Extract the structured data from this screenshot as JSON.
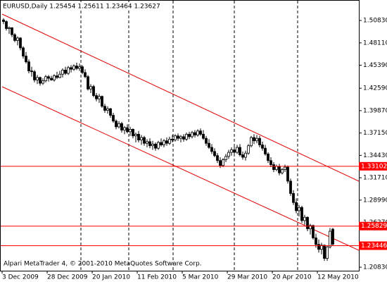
{
  "chart_data": {
    "type": "candlestick",
    "header": "EURUSD,Daily  1.25454 1.25611 1.23464 1.23627",
    "footer": "Alpari MetaTrader 4, © 2001-2010 MetaQuotes Software Corp.",
    "x_labels": [
      "3 Dec 2009",
      "28 Dec 2009",
      "20 Jan 2010",
      "11 Feb 2010",
      "5 Mar 2010",
      "29 Mar 2010",
      "20 Apr 2010",
      "12 May 2010"
    ],
    "ylim": [
      1.2049,
      1.5332
    ],
    "yticks": [
      {
        "value": 1.5083,
        "label": "1.50830"
      },
      {
        "value": 1.4811,
        "label": "1.48110"
      },
      {
        "value": 1.4539,
        "label": "1.45390"
      },
      {
        "value": 1.4259,
        "label": "1.42590"
      },
      {
        "value": 1.3987,
        "label": "1.39870"
      },
      {
        "value": 1.3715,
        "label": "1.37150"
      },
      {
        "value": 1.3443,
        "label": "1.34430"
      },
      {
        "value": 1.3171,
        "label": "1.31710"
      },
      {
        "value": 1.2899,
        "label": "1.28990"
      },
      {
        "value": 1.2627,
        "label": "1.26270"
      },
      {
        "value": 1.2083,
        "label": "1.20830"
      }
    ],
    "levels": [
      1.33102,
      1.25829,
      1.23446
    ],
    "level_color": "#ff0000",
    "ohlc": [
      [
        1.509,
        1.511,
        1.504,
        1.507
      ],
      [
        1.507,
        1.5085,
        1.496,
        1.4985
      ],
      [
        1.4985,
        1.501,
        1.492,
        1.4995
      ],
      [
        1.4995,
        1.5,
        1.488,
        1.491
      ],
      [
        1.491,
        1.493,
        1.482,
        1.484
      ],
      [
        1.484,
        1.489,
        1.478,
        1.487
      ],
      [
        1.487,
        1.488,
        1.472,
        1.475
      ],
      [
        1.475,
        1.477,
        1.462,
        1.465
      ],
      [
        1.465,
        1.47,
        1.456,
        1.458
      ],
      [
        1.458,
        1.461,
        1.444,
        1.447
      ],
      [
        1.447,
        1.452,
        1.44,
        1.446
      ],
      [
        1.446,
        1.448,
        1.433,
        1.436
      ],
      [
        1.436,
        1.442,
        1.431,
        1.439
      ],
      [
        1.439,
        1.44,
        1.429,
        1.432
      ],
      [
        1.432,
        1.438,
        1.43,
        1.435
      ],
      [
        1.435,
        1.442,
        1.433,
        1.44
      ],
      [
        1.44,
        1.442,
        1.434,
        1.438
      ],
      [
        1.438,
        1.441,
        1.435,
        1.436
      ],
      [
        1.436,
        1.443,
        1.434,
        1.441
      ],
      [
        1.441,
        1.446,
        1.437,
        1.439
      ],
      [
        1.439,
        1.447,
        1.438,
        1.443
      ],
      [
        1.443,
        1.45,
        1.439,
        1.448
      ],
      [
        1.448,
        1.452,
        1.442,
        1.444
      ],
      [
        1.444,
        1.453,
        1.442,
        1.451
      ],
      [
        1.451,
        1.454,
        1.445,
        1.449
      ],
      [
        1.449,
        1.455,
        1.447,
        1.453
      ],
      [
        1.453,
        1.457,
        1.448,
        1.45
      ],
      [
        1.45,
        1.456,
        1.447,
        1.452
      ],
      [
        1.452,
        1.454,
        1.443,
        1.445
      ],
      [
        1.445,
        1.449,
        1.438,
        1.44
      ],
      [
        1.44,
        1.442,
        1.423,
        1.425
      ],
      [
        1.425,
        1.431,
        1.42,
        1.428
      ],
      [
        1.428,
        1.43,
        1.415,
        1.417
      ],
      [
        1.417,
        1.42,
        1.41,
        1.413
      ],
      [
        1.413,
        1.419,
        1.408,
        1.416
      ],
      [
        1.416,
        1.417,
        1.402,
        1.404
      ],
      [
        1.404,
        1.407,
        1.396,
        1.399
      ],
      [
        1.399,
        1.404,
        1.395,
        1.401
      ],
      [
        1.401,
        1.402,
        1.39,
        1.393
      ],
      [
        1.393,
        1.396,
        1.384,
        1.386
      ],
      [
        1.386,
        1.388,
        1.376,
        1.379
      ],
      [
        1.379,
        1.386,
        1.377,
        1.383
      ],
      [
        1.383,
        1.385,
        1.372,
        1.375
      ],
      [
        1.375,
        1.38,
        1.37,
        1.378
      ],
      [
        1.378,
        1.382,
        1.371,
        1.373
      ],
      [
        1.373,
        1.379,
        1.368,
        1.376
      ],
      [
        1.376,
        1.377,
        1.365,
        1.368
      ],
      [
        1.368,
        1.372,
        1.36,
        1.37
      ],
      [
        1.37,
        1.374,
        1.36,
        1.363
      ],
      [
        1.363,
        1.369,
        1.357,
        1.366
      ],
      [
        1.366,
        1.368,
        1.356,
        1.359
      ],
      [
        1.359,
        1.364,
        1.354,
        1.361
      ],
      [
        1.361,
        1.365,
        1.353,
        1.356
      ],
      [
        1.356,
        1.362,
        1.351,
        1.358
      ],
      [
        1.358,
        1.36,
        1.35,
        1.353
      ],
      [
        1.353,
        1.362,
        1.351,
        1.36
      ],
      [
        1.36,
        1.365,
        1.355,
        1.357
      ],
      [
        1.357,
        1.364,
        1.354,
        1.362
      ],
      [
        1.362,
        1.366,
        1.356,
        1.359
      ],
      [
        1.359,
        1.367,
        1.357,
        1.364
      ],
      [
        1.364,
        1.369,
        1.36,
        1.363
      ],
      [
        1.363,
        1.37,
        1.361,
        1.368
      ],
      [
        1.368,
        1.371,
        1.362,
        1.365
      ],
      [
        1.365,
        1.369,
        1.36,
        1.367
      ],
      [
        1.367,
        1.37,
        1.361,
        1.364
      ],
      [
        1.364,
        1.372,
        1.362,
        1.37
      ],
      [
        1.37,
        1.373,
        1.364,
        1.367
      ],
      [
        1.367,
        1.374,
        1.365,
        1.372
      ],
      [
        1.372,
        1.375,
        1.366,
        1.369
      ],
      [
        1.369,
        1.376,
        1.367,
        1.374
      ],
      [
        1.374,
        1.377,
        1.368,
        1.37
      ],
      [
        1.37,
        1.375,
        1.363,
        1.365
      ],
      [
        1.365,
        1.368,
        1.356,
        1.359
      ],
      [
        1.359,
        1.364,
        1.352,
        1.354
      ],
      [
        1.354,
        1.358,
        1.346,
        1.349
      ],
      [
        1.349,
        1.353,
        1.342,
        1.344
      ],
      [
        1.344,
        1.347,
        1.335,
        1.338
      ],
      [
        1.338,
        1.342,
        1.329,
        1.332
      ],
      [
        1.332,
        1.341,
        1.33,
        1.339
      ],
      [
        1.339,
        1.346,
        1.336,
        1.343
      ],
      [
        1.343,
        1.351,
        1.34,
        1.348
      ],
      [
        1.348,
        1.354,
        1.344,
        1.351
      ],
      [
        1.351,
        1.356,
        1.345,
        1.348
      ],
      [
        1.348,
        1.357,
        1.346,
        1.354
      ],
      [
        1.354,
        1.358,
        1.343,
        1.345
      ],
      [
        1.345,
        1.349,
        1.339,
        1.342
      ],
      [
        1.342,
        1.35,
        1.338,
        1.347
      ],
      [
        1.347,
        1.358,
        1.345,
        1.356
      ],
      [
        1.356,
        1.368,
        1.354,
        1.366
      ],
      [
        1.366,
        1.37,
        1.358,
        1.362
      ],
      [
        1.362,
        1.369,
        1.359,
        1.365
      ],
      [
        1.365,
        1.368,
        1.354,
        1.357
      ],
      [
        1.357,
        1.361,
        1.35,
        1.353
      ],
      [
        1.353,
        1.357,
        1.344,
        1.346
      ],
      [
        1.346,
        1.348,
        1.335,
        1.338
      ],
      [
        1.338,
        1.342,
        1.33,
        1.333
      ],
      [
        1.333,
        1.336,
        1.324,
        1.327
      ],
      [
        1.327,
        1.333,
        1.325,
        1.331
      ],
      [
        1.331,
        1.334,
        1.32,
        1.323
      ],
      [
        1.323,
        1.329,
        1.321,
        1.327
      ],
      [
        1.327,
        1.333,
        1.324,
        1.33
      ],
      [
        1.33,
        1.332,
        1.31,
        1.313
      ],
      [
        1.313,
        1.316,
        1.295,
        1.298
      ],
      [
        1.298,
        1.302,
        1.284,
        1.287
      ],
      [
        1.287,
        1.292,
        1.274,
        1.277
      ],
      [
        1.277,
        1.284,
        1.27,
        1.281
      ],
      [
        1.281,
        1.283,
        1.262,
        1.265
      ],
      [
        1.265,
        1.272,
        1.26,
        1.269
      ],
      [
        1.269,
        1.27,
        1.252,
        1.255
      ],
      [
        1.255,
        1.261,
        1.248,
        1.259
      ],
      [
        1.259,
        1.26,
        1.242,
        1.244
      ],
      [
        1.244,
        1.249,
        1.232,
        1.236
      ],
      [
        1.236,
        1.242,
        1.226,
        1.23
      ],
      [
        1.23,
        1.238,
        1.224,
        1.235
      ],
      [
        1.235,
        1.236,
        1.216,
        1.219
      ],
      [
        1.219,
        1.235,
        1.216,
        1.233
      ],
      [
        1.233,
        1.256,
        1.231,
        1.252
      ],
      [
        1.25454,
        1.25611,
        1.23464,
        1.23627
      ]
    ]
  }
}
